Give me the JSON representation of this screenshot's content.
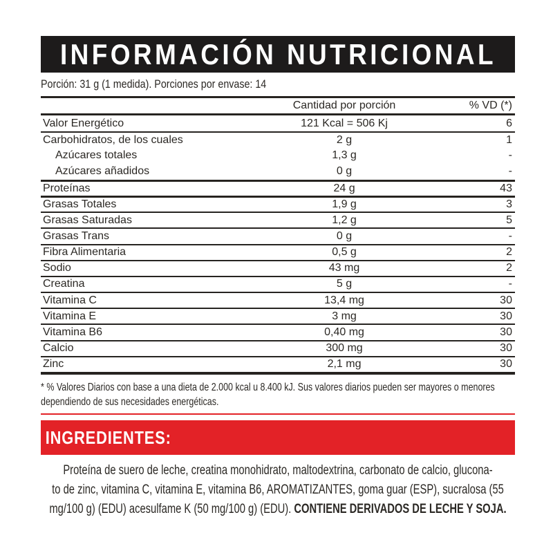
{
  "header": {
    "title": "INFORMACIÓN NUTRICIONAL"
  },
  "serving": {
    "text": "Porción: 31 g (1 medida). Porciones por envase: 14"
  },
  "table": {
    "col_amount": "Cantidad por porción",
    "col_vd": "% VD (*)",
    "rows": [
      {
        "name": "Valor Energético",
        "amount": "121 Kcal = 506 Kj",
        "vd": "6",
        "rule": "none"
      },
      {
        "name": "Carbohidratos, de los cuales",
        "amount": "2 g",
        "vd": "1",
        "rule": "thin"
      },
      {
        "name": "Azúcares totales",
        "amount": "1,3 g",
        "vd": "-",
        "rule": "none",
        "indent": true
      },
      {
        "name": "Azúcares añadidos",
        "amount": "0 g",
        "vd": "-",
        "rule": "none",
        "indent": true
      },
      {
        "name": "Proteínas",
        "amount": "24 g",
        "vd": "43",
        "rule": "thick"
      },
      {
        "name": "Grasas Totales",
        "amount": "1,9 g",
        "vd": "3",
        "rule": "thick"
      },
      {
        "name": "Grasas Saturadas",
        "amount": "1,2 g",
        "vd": "5",
        "rule": "thin"
      },
      {
        "name": "Grasas Trans",
        "amount": "0 g",
        "vd": "-",
        "rule": "thin"
      },
      {
        "name": "Fibra Alimentaria",
        "amount": "0,5 g",
        "vd": "2",
        "rule": "thin"
      },
      {
        "name": "Sodio",
        "amount": "43 mg",
        "vd": "2",
        "rule": "thin"
      },
      {
        "name": "Creatina",
        "amount": "5 g",
        "vd": "-",
        "rule": "thin"
      },
      {
        "name": "Vitamina C",
        "amount": "13,4 mg",
        "vd": "30",
        "rule": "thin"
      },
      {
        "name": "Vitamina E",
        "amount": "3 mg",
        "vd": "30",
        "rule": "thin"
      },
      {
        "name": "Vitamina B6",
        "amount": "0,40 mg",
        "vd": "30",
        "rule": "thin"
      },
      {
        "name": "Calcio",
        "amount": "300 mg",
        "vd": "30",
        "rule": "thin"
      },
      {
        "name": "Zinc",
        "amount": "2,1 mg",
        "vd": "30",
        "rule": "thin"
      }
    ]
  },
  "footnote": {
    "lines": [
      "* % Valores Diarios con base a una dieta de 2.000 kcal u 8.400 kJ. Sus valores diarios pueden ser mayores o menores",
      "dependiendo de sus necesidades energéticas."
    ]
  },
  "ingredients": {
    "title": "INGREDIENTES:",
    "line1": "Proteína de suero de leche, creatina monohidrato, maltodextrina, carbonato de calcio, glucona-",
    "line2": "to de zinc, vitamina C, vitamina E, vitamina B6, AROMATIZANTES, goma guar (ESP), sucralosa (55",
    "line3_regular": "mg/100 g) (EDU) acesulfame K (50 mg/100 g) (EDU). ",
    "line3_bold": "CONTIENE DERIVADOS DE LECHE Y SOJA."
  },
  "colors": {
    "accent_red": "#e32227",
    "bar_black": "#1d1b1b",
    "ink": "#262320"
  }
}
